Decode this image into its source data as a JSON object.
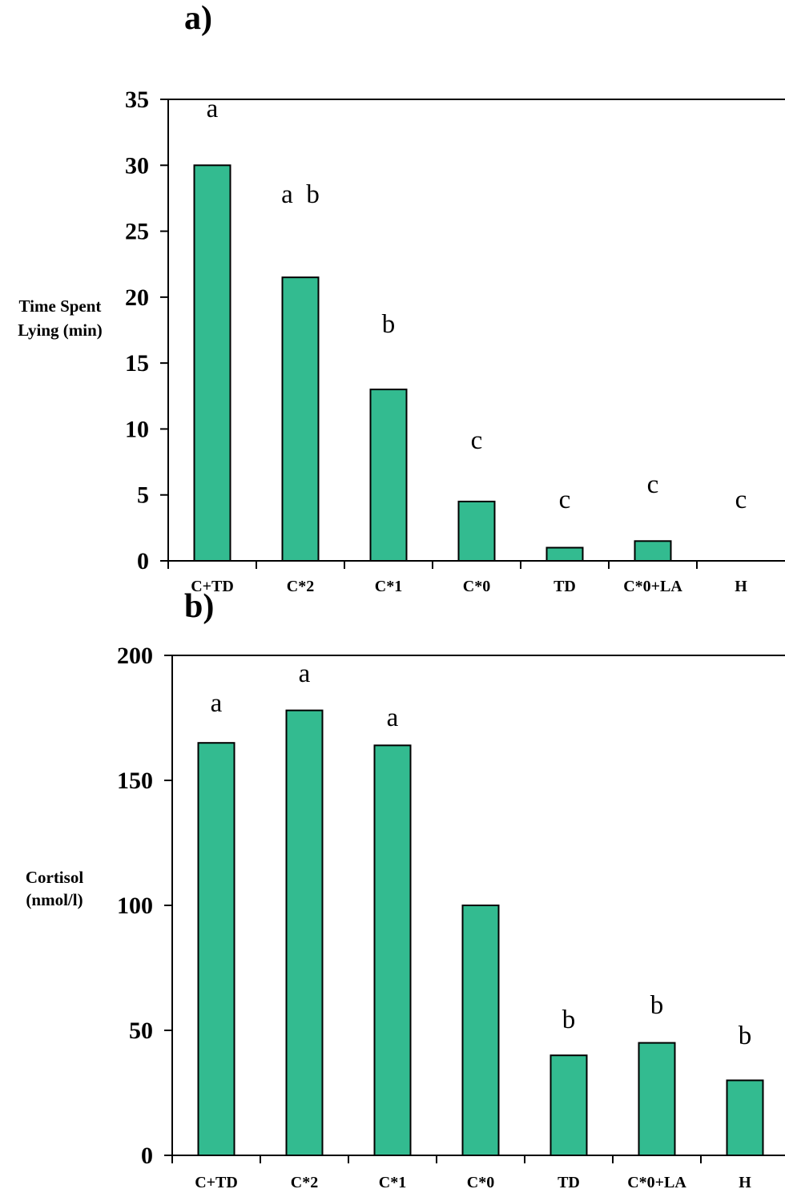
{
  "colors": {
    "bar": "#33bb90",
    "axis": "#000000"
  },
  "chart_data": [
    {
      "type": "bar",
      "panel_label": "a)",
      "ylabel_lines": [
        "Time Spent",
        "Lying (min)"
      ],
      "categories": [
        "C+TD",
        "C*2",
        "C*1",
        "C*0",
        "TD",
        "C*0+LA",
        "H"
      ],
      "values": [
        30,
        21.5,
        13,
        4.5,
        1,
        1.5,
        0
      ],
      "significance": [
        "a",
        "a  b",
        "b",
        "c",
        "c",
        "c",
        "c"
      ],
      "ylim": [
        0,
        35
      ],
      "yticks": [
        0,
        5,
        10,
        15,
        20,
        25,
        30,
        35
      ],
      "grid": false
    },
    {
      "type": "bar",
      "panel_label": "b)",
      "ylabel_lines": [
        "Cortisol",
        "(nmol/l)"
      ],
      "categories": [
        "C+TD",
        "C*2",
        "C*1",
        "C*0",
        "TD",
        "C*0+LA",
        "H"
      ],
      "values": [
        165,
        178,
        164,
        100,
        40,
        45,
        30
      ],
      "significance": [
        "a",
        "a",
        "a",
        "",
        "b",
        "b",
        "b"
      ],
      "ylim": [
        0,
        200
      ],
      "yticks": [
        0,
        50,
        100,
        150,
        200
      ],
      "grid": false
    }
  ]
}
